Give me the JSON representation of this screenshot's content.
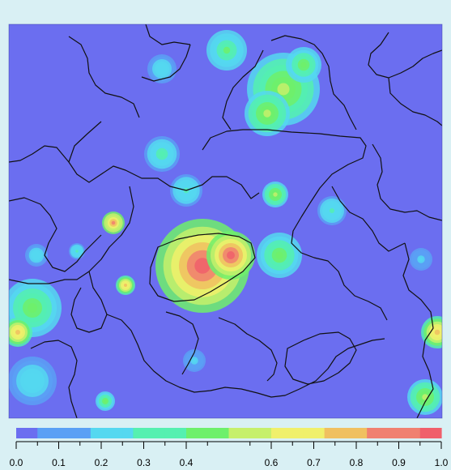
{
  "chart_data": {
    "type": "heatmap",
    "title": "",
    "xlabel": "",
    "ylabel": "",
    "grid": false,
    "colorbar": {
      "orientation": "horizontal",
      "placement": "bottom",
      "range": [
        0.0,
        1.0
      ],
      "ticks": [
        0.0,
        0.1,
        0.2,
        0.3,
        0.4,
        0.6,
        0.7,
        0.8,
        0.9,
        1.0
      ],
      "tick_labels": [
        "0.0",
        "0.1",
        "0.2",
        "0.3",
        "0.4",
        "0.6",
        "0.7",
        "0.8",
        "0.9",
        "1.0"
      ],
      "colors": [
        "#6b6ef0",
        "#5aa0f5",
        "#55d8f0",
        "#55f0b0",
        "#6ef06b",
        "#c6f06b",
        "#f0f06b",
        "#f0c060",
        "#f08070",
        "#f05f6b"
      ]
    },
    "background_value": 0.0,
    "hotspots": [
      {
        "region": "center",
        "peak": 1.0
      },
      {
        "region": "upper-right",
        "peak": 0.55
      },
      {
        "region": "lower-left",
        "peak": 0.95
      },
      {
        "region": "lower-right",
        "peak": 0.95
      }
    ]
  }
}
